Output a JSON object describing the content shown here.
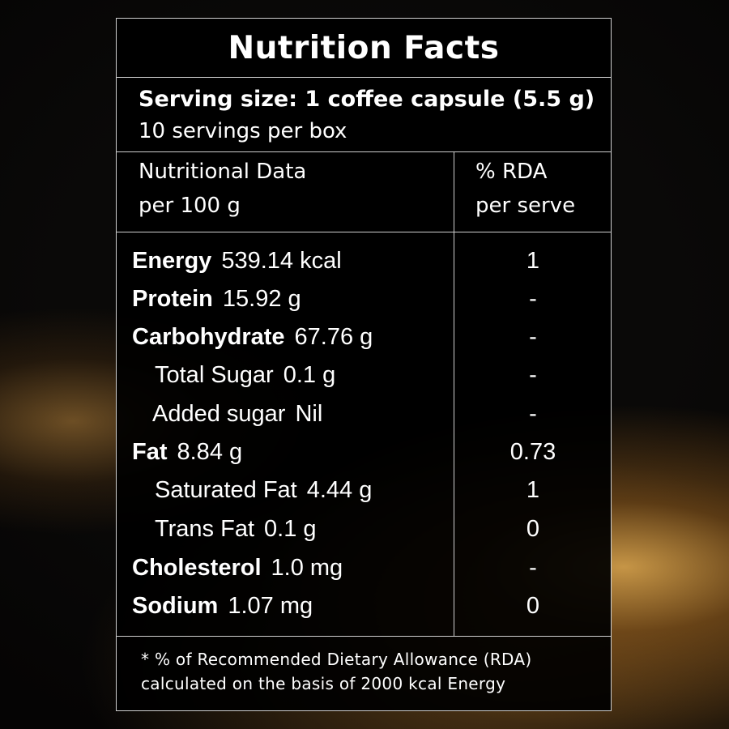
{
  "title": "Nutrition Facts",
  "serving": {
    "size": "Serving size: 1 coffee capsule (5.5 g)",
    "per_box": "10 servings per box"
  },
  "columns": {
    "left_line1": "Nutritional Data",
    "left_line2": "per 100 g",
    "right_line1": "% RDA",
    "right_line2": "per serve"
  },
  "rows": [
    {
      "name": "Energy",
      "value": "539.14 kcal",
      "rda": "1"
    },
    {
      "name": "Protein",
      "value": "15.92 g",
      "rda": "-"
    },
    {
      "name": "Carbohydrate",
      "value": "67.76 g",
      "rda": "-"
    },
    {
      "name": "Total Sugar",
      "value": "0.1 g",
      "rda": "-"
    },
    {
      "name": "Added sugar",
      "value": "Nil",
      "rda": "-"
    },
    {
      "name": "Fat",
      "value": "8.84 g",
      "rda": "0.73"
    },
    {
      "name": "Saturated Fat",
      "value": "4.44 g",
      "rda": "1"
    },
    {
      "name": "Trans Fat",
      "value": "0.1 g",
      "rda": "0"
    },
    {
      "name": "Cholesterol",
      "value": "1.0 mg",
      "rda": "-"
    },
    {
      "name": "Sodium",
      "value": "1.07 mg",
      "rda": "0"
    }
  ],
  "footnote": {
    "line1": "* % of Recommended Dietary Allowance (RDA)",
    "line2": "calculated on the basis of 2000 kcal Energy"
  }
}
